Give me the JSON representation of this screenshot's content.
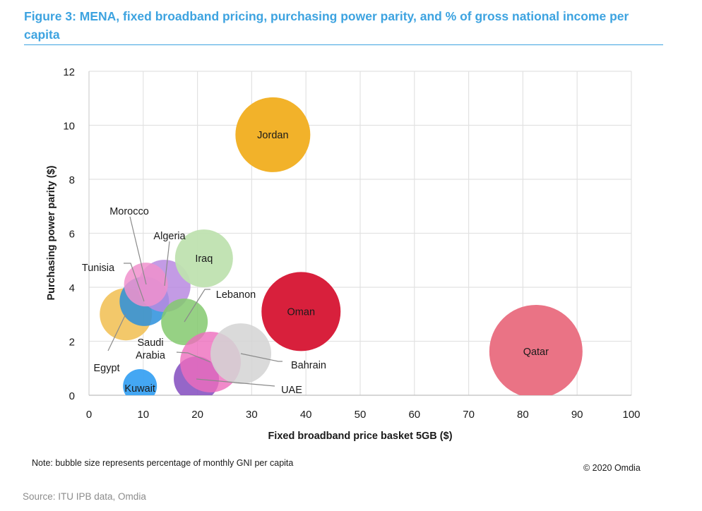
{
  "figure": {
    "title": "Figure 3: MENA, fixed broadband pricing, purchasing power parity, and % of gross national income per capita",
    "note": "Note: bubble size represents percentage of monthly GNI per capita",
    "copyright": "© 2020 Omdia",
    "source": "Source: ITU IPB data, Omdia",
    "accent_color": "#3da3e0"
  },
  "chart_data": {
    "type": "scatter",
    "subtype": "bubble",
    "title": "Figure 3: MENA, fixed broadband pricing, purchasing power parity, and % of gross national income per capita",
    "xlabel": "Fixed broadband price basket 5GB ($)",
    "ylabel": "Purchasing power parity ($)",
    "xlim": [
      0,
      100
    ],
    "ylim": [
      0,
      12
    ],
    "xticks": [
      "0",
      "10",
      "20",
      "30",
      "40",
      "50",
      "60",
      "70",
      "80",
      "90",
      "100"
    ],
    "yticks": [
      "0",
      "2",
      "4",
      "6",
      "8",
      "10",
      "12"
    ],
    "grid": true,
    "size_meaning": "percentage of monthly GNI per capita (relative)",
    "series": [
      {
        "name": "Egypt",
        "x": 6.8,
        "y": 3.0,
        "size": 37,
        "color": "#f2c25a",
        "opacity": 0.9
      },
      {
        "name": "Kuwait",
        "x": 9.4,
        "y": 0.34,
        "size": 24,
        "color": "#3aa2f2",
        "opacity": 0.95
      },
      {
        "name": "Tunisia",
        "x": 10.2,
        "y": 3.48,
        "size": 35,
        "color": "#2a8fdc",
        "opacity": 0.85
      },
      {
        "name": "Algeria",
        "x": 13.9,
        "y": 4.05,
        "size": 37,
        "color": "#b98ae0",
        "opacity": 0.85
      },
      {
        "name": "Morocco",
        "x": 10.5,
        "y": 4.1,
        "size": 31,
        "color": "#f090cc",
        "opacity": 0.85
      },
      {
        "name": "Iraq",
        "x": 21.2,
        "y": 5.07,
        "size": 41,
        "color": "#bfe2b0",
        "opacity": 0.95
      },
      {
        "name": "Lebanon",
        "x": 17.6,
        "y": 2.72,
        "size": 33,
        "color": "#84c96e",
        "opacity": 0.85
      },
      {
        "name": "UAE",
        "x": 19.8,
        "y": 0.6,
        "size": 32,
        "color": "#8a55c2",
        "opacity": 0.9
      },
      {
        "name": "Saudi Arabia",
        "x": 22.4,
        "y": 1.23,
        "size": 43,
        "color": "#ee6dbd",
        "opacity": 0.8
      },
      {
        "name": "Bahrain",
        "x": 28.0,
        "y": 1.54,
        "size": 43,
        "color": "#d4d4d4",
        "opacity": 0.85
      },
      {
        "name": "Jordan",
        "x": 33.9,
        "y": 9.65,
        "size": 53,
        "color": "#f2b22a",
        "opacity": 1
      },
      {
        "name": "Oman",
        "x": 39.1,
        "y": 3.1,
        "size": 56,
        "color": "#d8203c",
        "opacity": 1
      },
      {
        "name": "Qatar",
        "x": 82.4,
        "y": 1.62,
        "size": 66,
        "color": "#ea7385",
        "opacity": 1
      }
    ],
    "labels": [
      {
        "name": "Jordan",
        "text": [
          "Jordan"
        ],
        "inside": true
      },
      {
        "name": "Oman",
        "text": [
          "Oman"
        ],
        "inside": true
      },
      {
        "name": "Qatar",
        "text": [
          "Qatar"
        ],
        "inside": true
      },
      {
        "name": "Iraq",
        "text": [
          "Iraq"
        ],
        "inside": true
      },
      {
        "name": "Kuwait",
        "text": [
          "Kuwait"
        ],
        "inside": true
      },
      {
        "name": "Morocco",
        "text": [
          "Morocco"
        ],
        "inside": false
      },
      {
        "name": "Algeria",
        "text": [
          "Algeria"
        ],
        "inside": false
      },
      {
        "name": "Tunisia",
        "text": [
          "Tunisia"
        ],
        "inside": false
      },
      {
        "name": "Egypt",
        "text": [
          "Egypt"
        ],
        "inside": false
      },
      {
        "name": "Lebanon",
        "text": [
          "Lebanon"
        ],
        "inside": false
      },
      {
        "name": "Saudi Arabia",
        "text": [
          "Saudi",
          "Arabia"
        ],
        "inside": false
      },
      {
        "name": "Bahrain",
        "text": [
          "Bahrain"
        ],
        "inside": false
      },
      {
        "name": "UAE",
        "text": [
          "UAE"
        ],
        "inside": false
      }
    ]
  }
}
